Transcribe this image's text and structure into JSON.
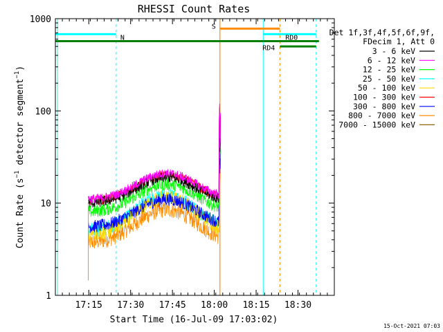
{
  "chart_data": {
    "type": "line",
    "title": "RHESSI Count Rates",
    "xlabel": "Start Time (16-Jul-09 17:03:02)",
    "ylabel_main": "Count Rate (s",
    "ylabel_sup1": "−1",
    "ylabel_mid": " detector segment",
    "ylabel_sup2": "−1",
    "ylabel_end": ")",
    "footer": "15-Oct-2021 07:03",
    "x_start_min": 0,
    "xlim": [
      0,
      100
    ],
    "ylim": [
      1,
      1000
    ],
    "y_scale": "log",
    "x_ticks": [
      {
        "label": "17:15",
        "min": 11.97
      },
      {
        "label": "17:30",
        "min": 26.97
      },
      {
        "label": "17:45",
        "min": 41.97
      },
      {
        "label": "18:00",
        "min": 56.97
      },
      {
        "label": "18:15",
        "min": 71.97
      },
      {
        "label": "18:30",
        "min": 86.97
      }
    ],
    "y_ticks": [
      {
        "label": "1",
        "value": 1
      },
      {
        "label": "10",
        "value": 10
      },
      {
        "label": "100",
        "value": 100
      },
      {
        "label": "1000",
        "value": 1000
      }
    ],
    "legend_header": [
      "Det 1f,3f,4f,5f,6f,9f,",
      "FDecim 1, Att 0"
    ],
    "series": [
      {
        "name": "3 - 6 keV",
        "color": "#000000",
        "base": 10.0,
        "peak": 19.0,
        "amp": 0.06
      },
      {
        "name": "6 - 12 keV",
        "color": "#ff00ff",
        "base": 11.0,
        "peak": 21.0,
        "amp": 0.05
      },
      {
        "name": "12 - 25 keV",
        "color": "#00ff00",
        "base": 8.0,
        "peak": 16.0,
        "amp": 0.07
      },
      {
        "name": "25 - 50 keV",
        "color": "#00ffff",
        "base": 5.0,
        "peak": 12.0,
        "amp": 0.08
      },
      {
        "name": "50 - 100 keV",
        "color": "#ffd700",
        "base": 4.5,
        "peak": 11.5,
        "amp": 0.08
      },
      {
        "name": "100 - 300 keV",
        "color": "#ff0000",
        "base": 10.5,
        "peak": 20.0,
        "amp": 0.05
      },
      {
        "name": "300 - 800 keV",
        "color": "#0000ff",
        "base": 5.5,
        "peak": 11.0,
        "amp": 0.07
      },
      {
        "name": "800 - 7000 keV",
        "color": "#ff8c00",
        "base": 3.7,
        "peak": 8.5,
        "amp": 0.09
      },
      {
        "name": "7000 - 15000 keV",
        "color": "#8b6508",
        "base": 4.0,
        "peak": 9.0,
        "amp": 0.0
      }
    ],
    "flare_spike": {
      "min": 58.7,
      "values": [
        65,
        90,
        60,
        120,
        50,
        80,
        40,
        70,
        45,
        95
      ]
    },
    "data_range_min": [
      11.8,
      58.6
    ],
    "annotations": {
      "vlines_cyan": [
        0.8,
        21.8,
        74.5,
        93.5
      ],
      "vlines_orange_solid": [
        59.0
      ],
      "vlines_orange_dashed": [
        80.5
      ],
      "segments": [
        {
          "label": "N",
          "color": "#00ffff",
          "x": [
            0,
            21.8
          ],
          "y": 680,
          "label_side": "right"
        },
        {
          "label": "",
          "color": "#00ffff",
          "x": [
            74.5,
            93.5
          ],
          "y": 680,
          "label_side": "none"
        },
        {
          "label": "S",
          "color": "#ff8c00",
          "x": [
            59.0,
            80.5
          ],
          "y": 780,
          "label_side": "left"
        },
        {
          "label": "RD0",
          "color": "#008000",
          "x": [
            74.5,
            94.5
          ],
          "y": 570,
          "label_side": "above"
        },
        {
          "label": "RD4",
          "color": "#008000",
          "x": [
            0,
            74.5
          ],
          "y": 570,
          "label_side": "below"
        },
        {
          "label": "",
          "color": "#008000",
          "x": [
            80.5,
            93.5
          ],
          "y": 500,
          "label_side": "none"
        }
      ]
    }
  }
}
